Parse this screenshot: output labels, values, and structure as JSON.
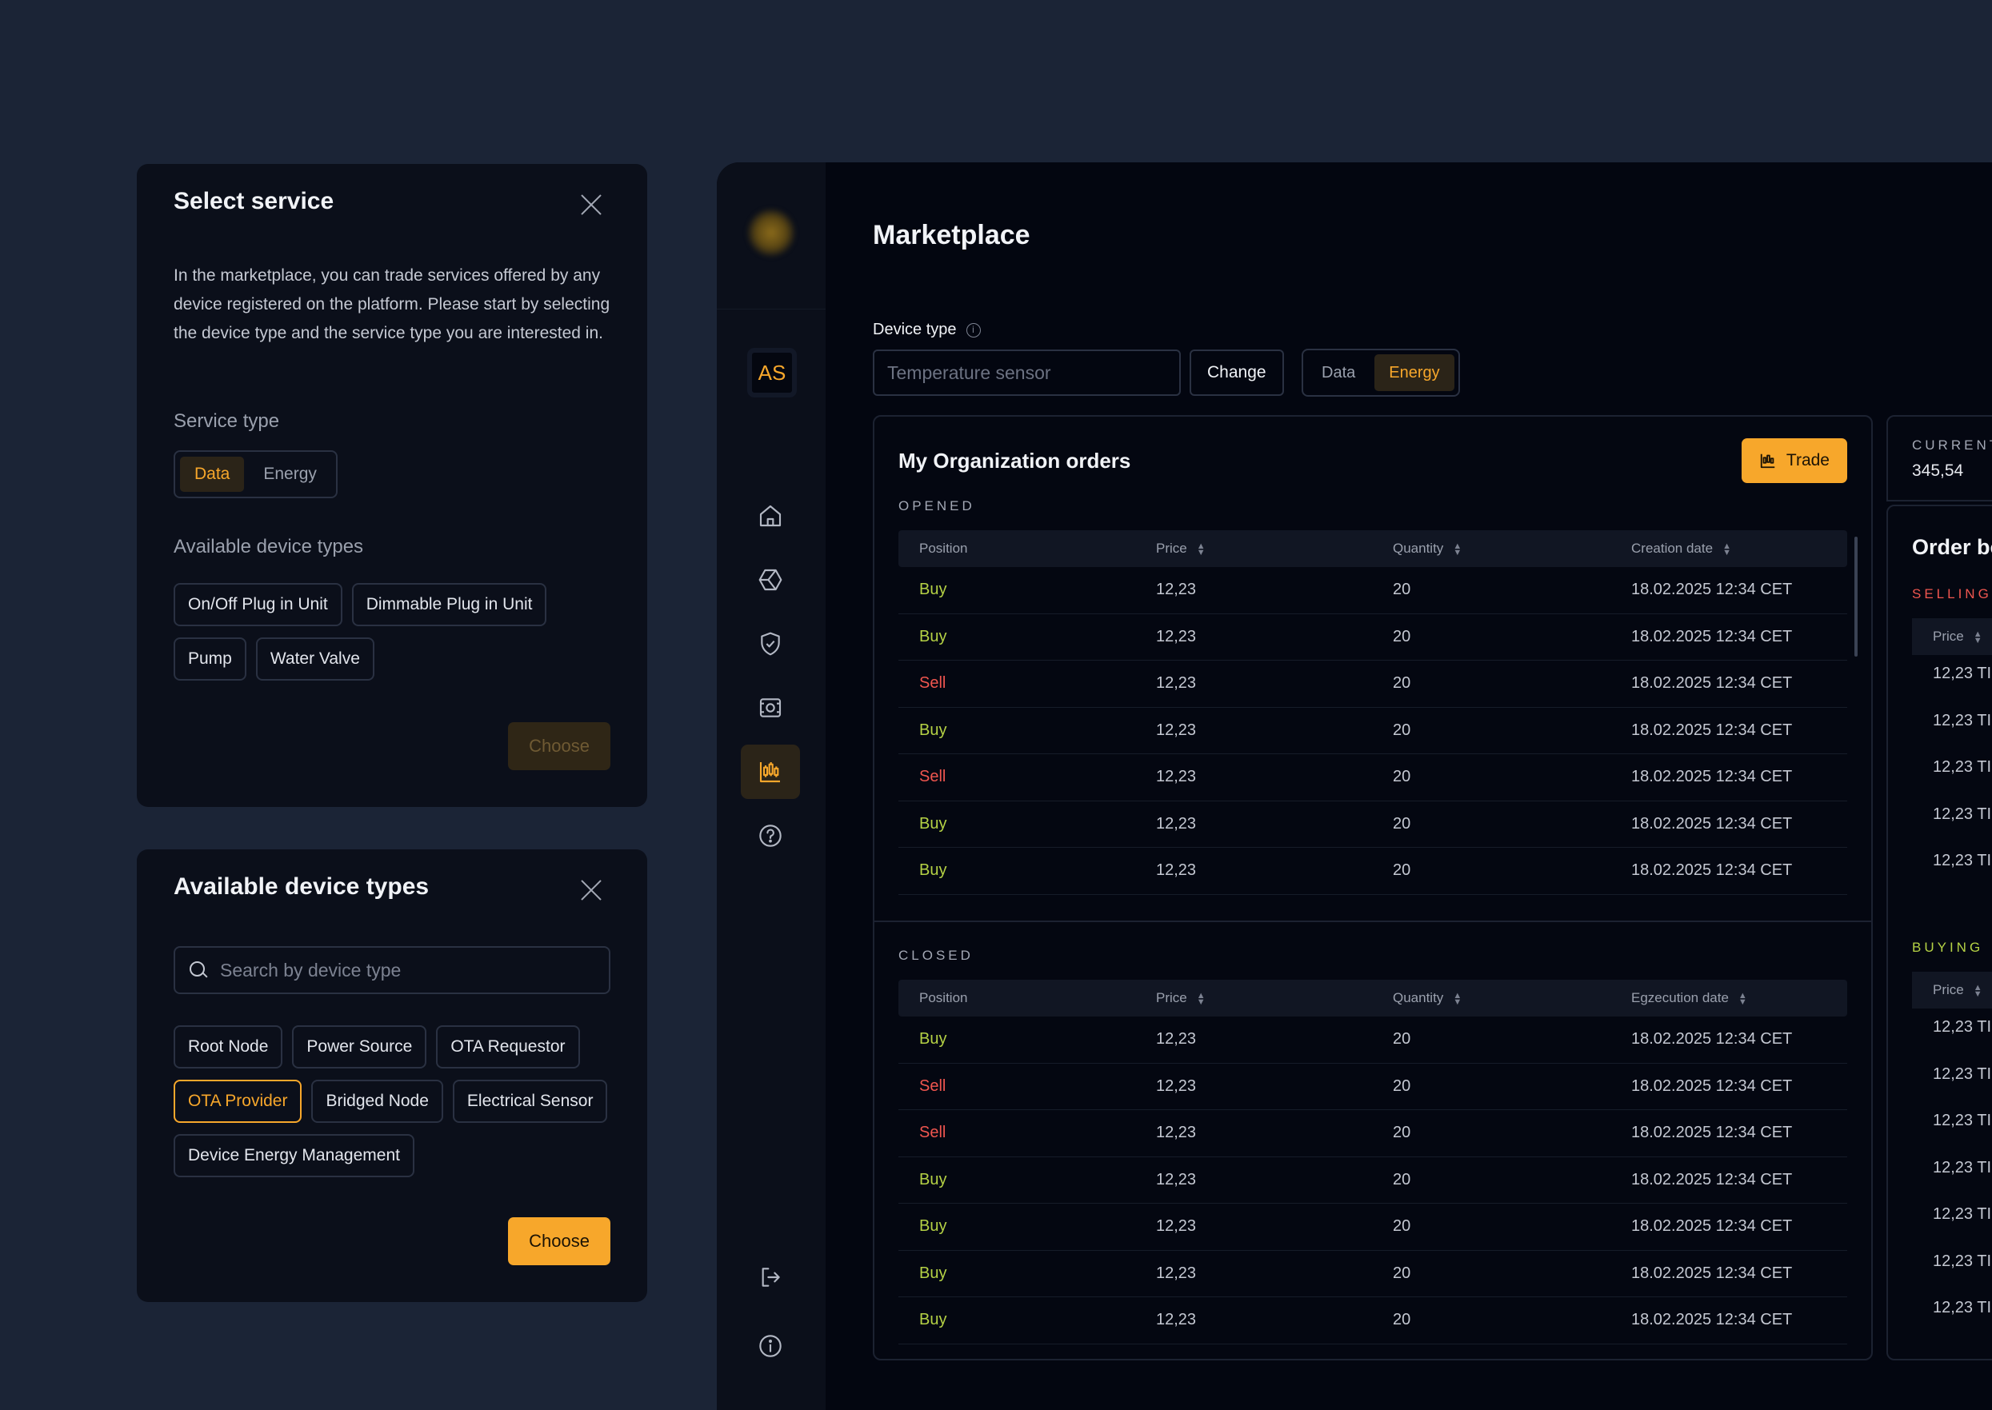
{
  "select_service": {
    "title": "Select service",
    "description": "In the marketplace, you can trade services offered by any device registered on the platform. Please start by selecting the device type and the service type you are interested in.",
    "service_type_label": "Service type",
    "service_types": [
      "Data",
      "Energy"
    ],
    "selected_service_type": "Data",
    "available_label": "Available device types",
    "device_types": [
      "On/Off Plug in Unit",
      "Dimmable Plug in Unit",
      "Pump",
      "Water Valve"
    ],
    "choose_label": "Choose"
  },
  "device_types_modal": {
    "title": "Available device types",
    "search_placeholder": "Search by device type",
    "device_types": [
      "Root Node",
      "Power Source",
      "OTA Requestor",
      "OTA Provider",
      "Bridged Node",
      "Electrical Sensor",
      "Device Energy Management"
    ],
    "selected": "OTA Provider",
    "choose_label": "Choose"
  },
  "sidebar": {
    "avatar_initials": "AS",
    "icons": [
      "home-icon",
      "hexagon-icon",
      "shield-check-icon",
      "camera-sensor-icon",
      "candlestick-chart-icon",
      "help-icon"
    ],
    "active_icon": "candlestick-chart-icon",
    "bottom_icons": [
      "logout-icon",
      "info-icon"
    ]
  },
  "marketplace": {
    "title": "Marketplace",
    "device_type_label": "Device type",
    "device_type_placeholder": "Temperature sensor",
    "change_label": "Change",
    "service_types": [
      "Data",
      "Energy"
    ],
    "selected_service_type": "Energy"
  },
  "orders": {
    "title": "My Organization orders",
    "trade_label": "Trade",
    "opened": {
      "label": "OPENED",
      "columns": [
        "Position",
        "Price",
        "Quantity",
        "Creation date"
      ],
      "rows": [
        [
          "Buy",
          "12,23",
          "20",
          "18.02.2025 12:34 CET"
        ],
        [
          "Buy",
          "12,23",
          "20",
          "18.02.2025 12:34 CET"
        ],
        [
          "Sell",
          "12,23",
          "20",
          "18.02.2025 12:34 CET"
        ],
        [
          "Buy",
          "12,23",
          "20",
          "18.02.2025 12:34 CET"
        ],
        [
          "Sell",
          "12,23",
          "20",
          "18.02.2025 12:34 CET"
        ],
        [
          "Buy",
          "12,23",
          "20",
          "18.02.2025 12:34 CET"
        ],
        [
          "Buy",
          "12,23",
          "20",
          "18.02.2025 12:34 CET"
        ]
      ]
    },
    "closed": {
      "label": "CLOSED",
      "columns": [
        "Position",
        "Price",
        "Quantity",
        "Egzecution date"
      ],
      "rows": [
        [
          "Buy",
          "12,23",
          "20",
          "18.02.2025 12:34 CET"
        ],
        [
          "Sell",
          "12,23",
          "20",
          "18.02.2025 12:34 CET"
        ],
        [
          "Sell",
          "12,23",
          "20",
          "18.02.2025 12:34 CET"
        ],
        [
          "Buy",
          "12,23",
          "20",
          "18.02.2025 12:34 CET"
        ],
        [
          "Buy",
          "12,23",
          "20",
          "18.02.2025 12:34 CET"
        ],
        [
          "Buy",
          "12,23",
          "20",
          "18.02.2025 12:34 CET"
        ],
        [
          "Buy",
          "12,23",
          "20",
          "18.02.2025 12:34 CET"
        ]
      ]
    }
  },
  "order_book": {
    "current_label": "CURRENT",
    "current_value": "345,54",
    "title": "Order bo",
    "selling_label": "SELLING",
    "buying_label": "BUYING",
    "price_column": "Price",
    "selling_rows": [
      "12,23 TI",
      "12,23 TI",
      "12,23 TI",
      "12,23 TI",
      "12,23 TI"
    ],
    "buying_rows": [
      "12,23 TI",
      "12,23 TI",
      "12,23 TI",
      "12,23 TI",
      "12,23 TI",
      "12,23 TI",
      "12,23 TI"
    ]
  },
  "colors": {
    "accent": "#f7a72b",
    "buy": "#b5d245",
    "sell": "#f0564f"
  }
}
